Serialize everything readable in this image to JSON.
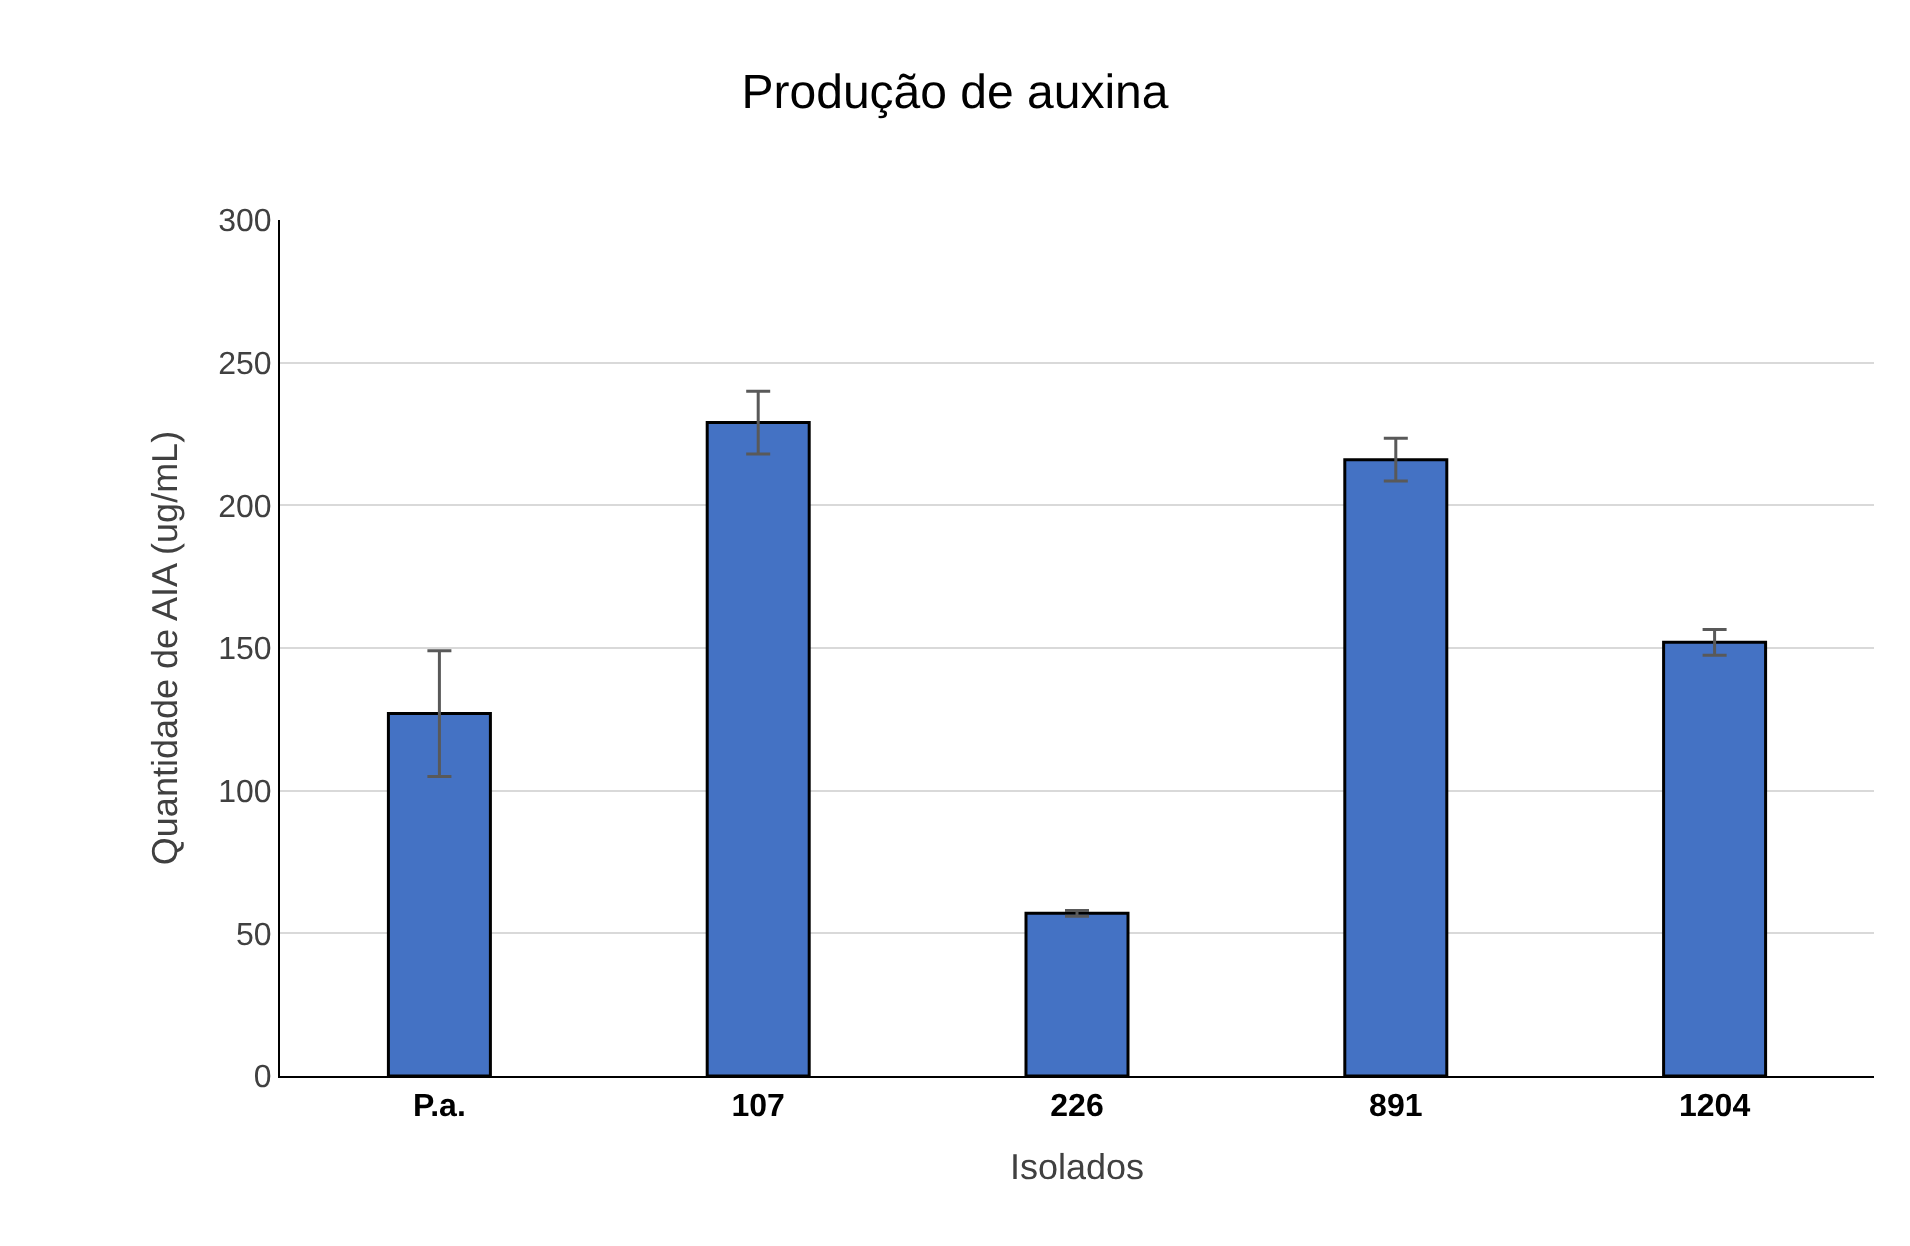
{
  "chart_data": {
    "type": "bar",
    "title": "Produção de auxina",
    "xlabel": "Isolados",
    "ylabel": "Quantidade de AIA (ug/mL)",
    "categories": [
      "P.a.",
      "107",
      "226",
      "891",
      "1204"
    ],
    "values": [
      127,
      229,
      57,
      216,
      152
    ],
    "errors": [
      22,
      11,
      1,
      7.5,
      4.5
    ],
    "color": "#4472c4",
    "ylim": [
      0,
      300
    ],
    "yticks": [
      0,
      50,
      100,
      150,
      200,
      250,
      300
    ],
    "grid": "y",
    "legend": false
  }
}
